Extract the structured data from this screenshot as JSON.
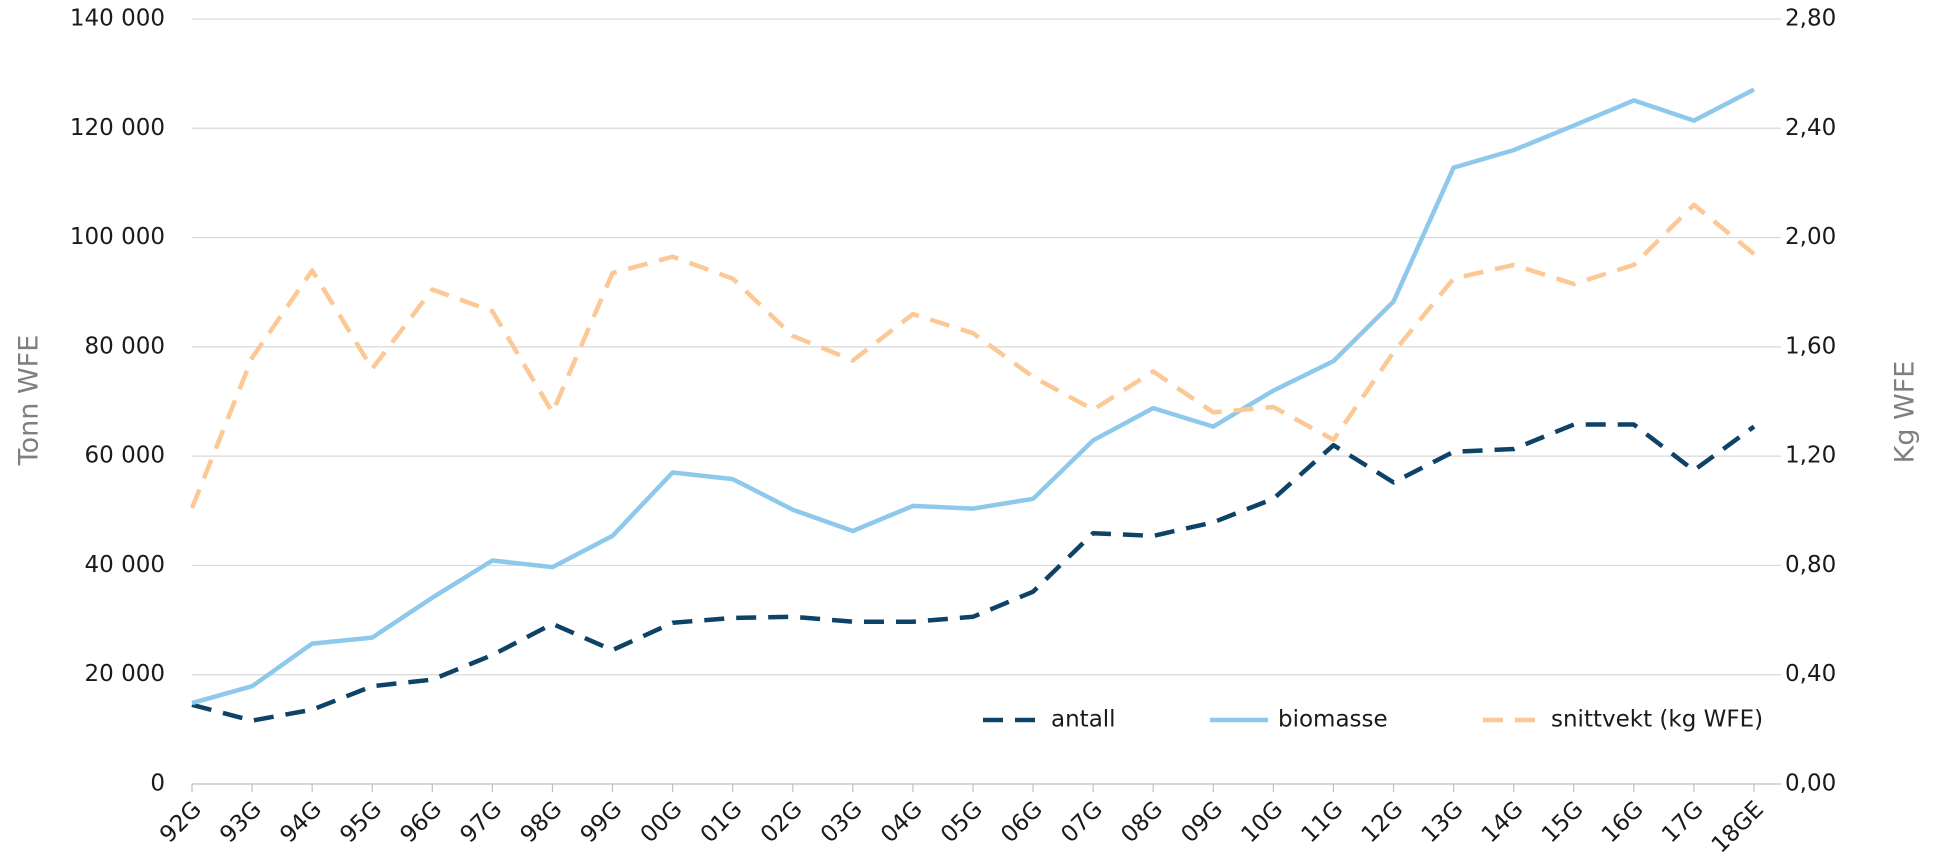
{
  "chart_data": {
    "type": "line",
    "ylabel": "Tonn WFE",
    "y2label": "Kg WFE",
    "categories": [
      "92G",
      "93G",
      "94G",
      "95G",
      "96G",
      "97G",
      "98G",
      "99G",
      "00G",
      "01G",
      "02G",
      "03G",
      "04G",
      "05G",
      "06G",
      "07G",
      "08G",
      "09G",
      "10G",
      "11G",
      "12G",
      "13G",
      "14G",
      "15G",
      "16G",
      "17G",
      "18GE"
    ],
    "series": [
      {
        "name": "antall",
        "color": "#0e4266",
        "dashed": true,
        "values": [
          14500,
          11600,
          13600,
          17900,
          19100,
          23600,
          29300,
          24500,
          29500,
          30400,
          30600,
          29700,
          29700,
          30600,
          35200,
          45900,
          45400,
          47900,
          52200,
          62000,
          55200,
          60800,
          61300,
          65800,
          65800,
          57400,
          65400
        ]
      },
      {
        "name": "biomasse",
        "color": "#8ec9ec",
        "dashed": false,
        "values": [
          14800,
          17900,
          25700,
          26800,
          34100,
          40900,
          39700,
          45400,
          57000,
          55800,
          50200,
          46300,
          50900,
          50400,
          52200,
          62900,
          68800,
          65400,
          72000,
          77400,
          88300,
          112800,
          116000,
          120500,
          125100,
          121400,
          127100
        ]
      },
      {
        "name": "snittvekt (kg WFE)",
        "color": "#fcc895",
        "dashed": true,
        "axis": "y2",
        "values": [
          1.01,
          1.56,
          1.88,
          1.52,
          1.81,
          1.73,
          1.36,
          1.87,
          1.93,
          1.85,
          1.64,
          1.55,
          1.72,
          1.65,
          1.49,
          1.37,
          1.51,
          1.36,
          1.38,
          1.26,
          1.58,
          1.85,
          1.9,
          1.83,
          1.9,
          2.12,
          1.94
        ]
      }
    ],
    "ylim": [
      0,
      140000
    ],
    "yticks": [
      0,
      {
        "value": 20000,
        "label": "20 000"
      },
      {
        "value": 40000,
        "label": "40 000"
      },
      {
        "value": 60000,
        "label": "60 000"
      },
      {
        "value": 80000,
        "label": "80 000"
      },
      {
        "value": 100000,
        "label": "100 000"
      },
      {
        "value": 120000,
        "label": "120 000"
      },
      {
        "value": 140000,
        "label": "140 000"
      }
    ],
    "y2lim": [
      0,
      2.8
    ],
    "y2ticks": [
      {
        "value": 0,
        "label": "0,00"
      },
      {
        "value": 0.4,
        "label": "0,40"
      },
      {
        "value": 0.8,
        "label": "0,80"
      },
      {
        "value": 1.2,
        "label": "1,20"
      },
      {
        "value": 1.6,
        "label": "1,60"
      },
      {
        "value": 2.0,
        "label": "2,00"
      },
      {
        "value": 2.4,
        "label": "2,40"
      },
      {
        "value": 2.8,
        "label": "2,80"
      }
    ],
    "grid": true,
    "legend": "lower right"
  }
}
